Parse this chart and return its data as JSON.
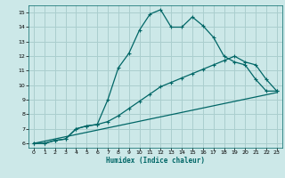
{
  "xlabel": "Humidex (Indice chaleur)",
  "xlim": [
    -0.5,
    23.5
  ],
  "ylim": [
    5.7,
    15.5
  ],
  "yticks": [
    6,
    7,
    8,
    9,
    10,
    11,
    12,
    13,
    14,
    15
  ],
  "xticks": [
    0,
    1,
    2,
    3,
    4,
    5,
    6,
    7,
    8,
    9,
    10,
    11,
    12,
    13,
    14,
    15,
    16,
    17,
    18,
    19,
    20,
    21,
    22,
    23
  ],
  "background_color": "#cce8e8",
  "grid_color": "#aacece",
  "line_color": "#006666",
  "line1_x": [
    0,
    1,
    2,
    3,
    4,
    5,
    6,
    7,
    8,
    9,
    10,
    11,
    12,
    13,
    14,
    15,
    16,
    17,
    18,
    19,
    20,
    21,
    22,
    23
  ],
  "line1_y": [
    6.0,
    6.0,
    6.2,
    6.3,
    7.0,
    7.2,
    7.3,
    9.0,
    11.2,
    12.2,
    13.8,
    14.9,
    15.2,
    14.0,
    14.0,
    14.7,
    14.1,
    13.3,
    12.0,
    11.6,
    11.4,
    10.4,
    9.6,
    9.6
  ],
  "line2_x": [
    0,
    1,
    2,
    3,
    4,
    5,
    6,
    7,
    8,
    9,
    10,
    11,
    12,
    13,
    14,
    15,
    16,
    17,
    18,
    19,
    20,
    21,
    22,
    23
  ],
  "line2_y": [
    6.0,
    6.0,
    6.2,
    6.3,
    7.0,
    7.2,
    7.3,
    7.5,
    7.9,
    8.4,
    8.9,
    9.4,
    9.9,
    10.2,
    10.5,
    10.8,
    11.1,
    11.4,
    11.7,
    12.0,
    11.6,
    11.4,
    10.4,
    9.6
  ],
  "line3_x": [
    0,
    23
  ],
  "line3_y": [
    6.0,
    9.5
  ]
}
